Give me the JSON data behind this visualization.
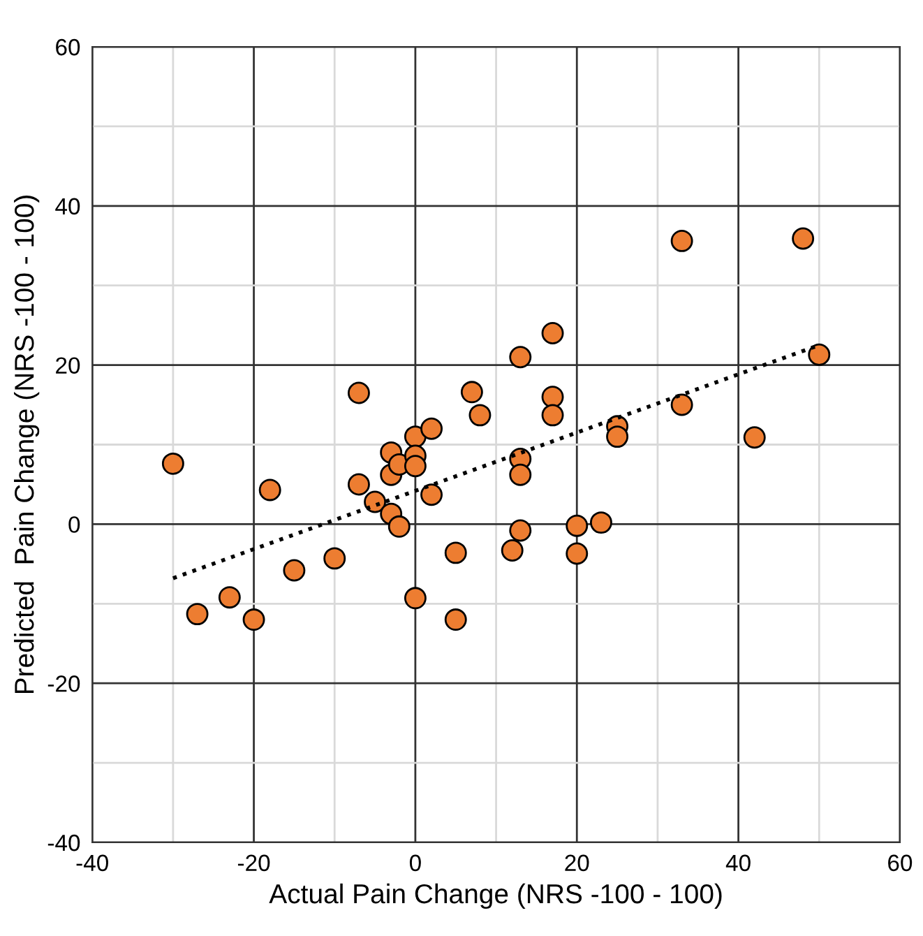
{
  "chart_data": {
    "type": "scatter",
    "xlabel": "Actual Pain Change (NRS -100 - 100)",
    "ylabel": "Predicted  Pain Change (NRS -100 - 100)",
    "xlim": [
      -40,
      60
    ],
    "ylim": [
      -40,
      60
    ],
    "xticks": [
      -40,
      -20,
      0,
      20,
      40,
      60
    ],
    "yticks": [
      -40,
      -20,
      0,
      20,
      40,
      60
    ],
    "grid": true,
    "marker": "circle",
    "legend": false,
    "series": [
      {
        "color": "#ed7d31",
        "x": [
          -30,
          -27,
          -23,
          -20,
          -18,
          -15,
          -10,
          -7,
          -7,
          -5,
          -3,
          -3,
          -3,
          -2,
          -2,
          0,
          0,
          0,
          0,
          2,
          2,
          5,
          5,
          7,
          8,
          12,
          13,
          13,
          13,
          13,
          17,
          17,
          17,
          20,
          20,
          23,
          25,
          25,
          33,
          33,
          42,
          48,
          50
        ],
        "values": [
          7.6,
          -11.3,
          -9.2,
          -12,
          4.3,
          -5.8,
          -4.3,
          16.5,
          5,
          2.8,
          9,
          6.2,
          1.3,
          -0.3,
          7.5,
          11,
          8.6,
          7.3,
          -9.3,
          12,
          3.7,
          -3.6,
          -12,
          16.6,
          13.7,
          -3.3,
          21,
          8.2,
          6.2,
          -0.8,
          24,
          16,
          13.7,
          -0.2,
          -3.7,
          0.2,
          12.3,
          11,
          35.6,
          15,
          10.9,
          35.9,
          21.3
        ]
      },
      {
        "type": "line",
        "color": "#000000",
        "line_style": "dotted",
        "marker": "none",
        "x": [
          -30,
          50
        ],
        "values": [
          -6.8,
          22.5
        ]
      }
    ]
  }
}
